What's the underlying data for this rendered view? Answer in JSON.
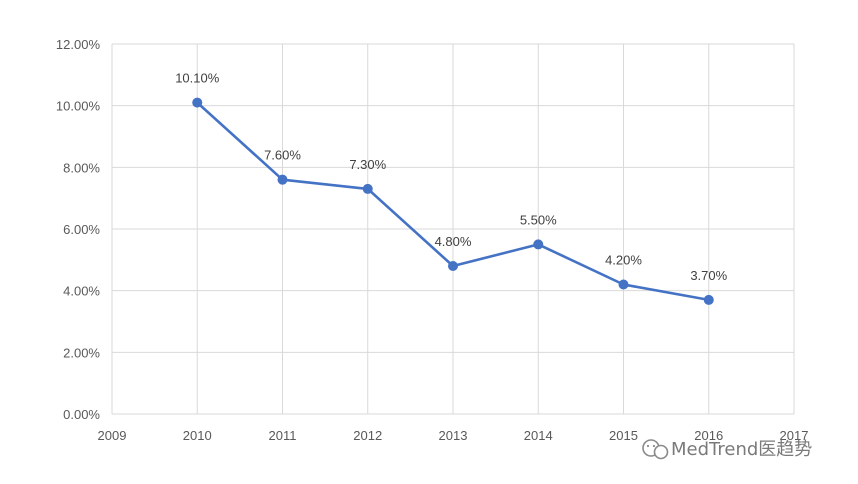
{
  "chart_data": {
    "type": "line",
    "title": "",
    "xlabel": "",
    "ylabel": "",
    "x": [
      2010,
      2011,
      2012,
      2013,
      2014,
      2015,
      2016
    ],
    "values": [
      10.1,
      7.6,
      7.3,
      4.8,
      5.5,
      4.2,
      3.7
    ],
    "data_labels": [
      "10.10%",
      "7.60%",
      "7.30%",
      "4.80%",
      "5.50%",
      "4.20%",
      "3.70%"
    ],
    "x_ticks": [
      "2009",
      "2010",
      "2011",
      "2012",
      "2013",
      "2014",
      "2015",
      "2016",
      "2017"
    ],
    "y_ticks": [
      "0.00%",
      "2.00%",
      "4.00%",
      "6.00%",
      "8.00%",
      "10.00%",
      "12.00%"
    ],
    "xlim": [
      2009,
      2017
    ],
    "ylim": [
      0,
      12
    ],
    "grid": true,
    "series_color": "#4472c4"
  },
  "watermark": {
    "text": "MedTrend医趋势",
    "icon": "wechat-icon"
  }
}
